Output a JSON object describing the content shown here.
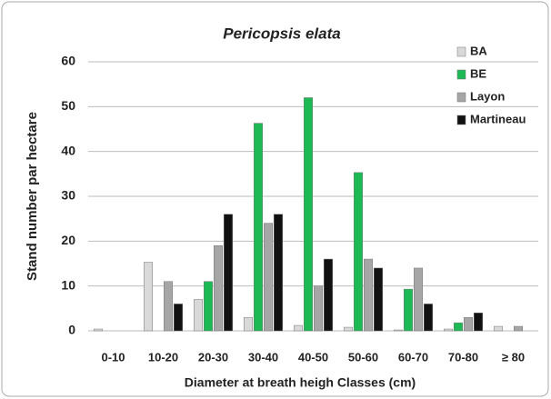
{
  "chart_data": {
    "type": "bar",
    "title": "Pericopsis elata",
    "x_label": "Diameter  at breath heigh Classes (cm)",
    "y_label": "Stand number par hectare",
    "categories": [
      "0-10",
      "10-20",
      "20-30",
      "30-40",
      "40-50",
      "50-60",
      "60-70",
      "70-80",
      "≥ 80"
    ],
    "series": [
      {
        "name": "BA",
        "color": "#d9d9d9",
        "values": [
          0.4,
          15.3,
          7,
          3,
          1.2,
          0.8,
          0.2,
          0.4,
          1
        ]
      },
      {
        "name": "BE",
        "color": "#1db954",
        "values": [
          0,
          0,
          11,
          46.3,
          52,
          35.3,
          9.3,
          1.8,
          0
        ]
      },
      {
        "name": "Layon",
        "color": "#a6a6a6",
        "values": [
          0,
          11,
          19,
          24,
          10,
          16,
          14,
          3,
          1
        ]
      },
      {
        "name": "Martineau",
        "color": "#111111",
        "values": [
          0,
          6,
          26,
          26,
          16,
          14,
          6,
          4,
          0
        ]
      }
    ],
    "ylim": [
      0,
      60
    ],
    "yticks": [
      0,
      10,
      20,
      30,
      40,
      50,
      60
    ],
    "grid": true,
    "legend": "top-right"
  }
}
